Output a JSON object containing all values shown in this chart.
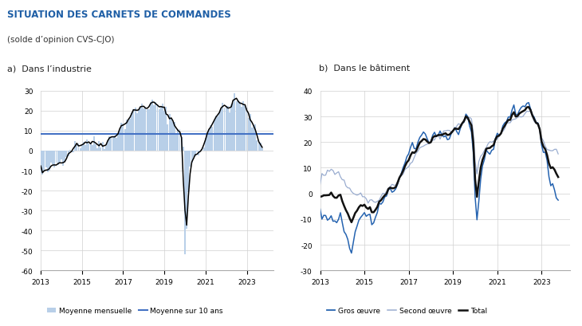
{
  "title": "SITUATION DES CARNETS DE COMMANDES",
  "subtitle": "(solde d’opinion CVS-CJO)",
  "label_a": "a)  Dans l’industrie",
  "label_b": "b)  Dans le bâtiment",
  "title_color": "#1f5fa6",
  "subtitle_color": "#333333",
  "mean10_color": "#4472c4",
  "bar_color": "#b8cfe8",
  "gros_color": "#2563b0",
  "second_color": "#9aadd0",
  "total_color": "#111111",
  "ylim_a": [
    -60,
    30
  ],
  "yticks_a": [
    -60,
    -50,
    -40,
    -30,
    -20,
    -10,
    0,
    10,
    20,
    30
  ],
  "ylim_b": [
    -30,
    40
  ],
  "yticks_b": [
    -30,
    -20,
    -10,
    0,
    10,
    20,
    30,
    40
  ],
  "mean10_value": 8.5,
  "xticks": [
    2013,
    2015,
    2017,
    2019,
    2021,
    2023
  ]
}
